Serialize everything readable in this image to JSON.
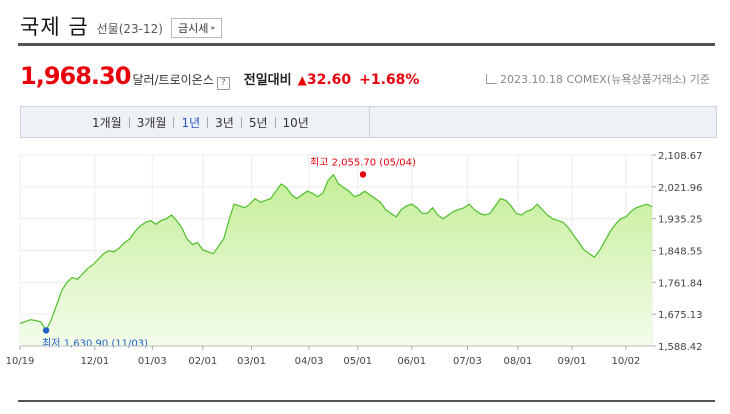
{
  "header": {
    "title": "국제 금",
    "subtitle": "선물(23-12)",
    "price_button": "금시세"
  },
  "quote": {
    "price": "1,968.30",
    "unit": "달러/트로이온스",
    "help": "?",
    "prev_label": "전일대비",
    "change_symbol": "▲",
    "change": "32.60",
    "percent": "+1.68%",
    "date_source": "2023.10.18  COMEX(뉴욕상품거래소) 기준"
  },
  "tabs": [
    {
      "label": "1개월",
      "active": false
    },
    {
      "label": "3개월",
      "active": false
    },
    {
      "label": "1년",
      "active": true
    },
    {
      "label": "3년",
      "active": false
    },
    {
      "label": "5년",
      "active": false
    },
    {
      "label": "10년",
      "active": false
    }
  ],
  "colors": {
    "up": "#e8000b",
    "low": "#1f63c6",
    "line": "#4fbf2a",
    "fill_top": "#c4ee97",
    "fill_bottom": "#f4fceb",
    "active_tab": "#2457c5"
  },
  "chart_data": {
    "type": "area",
    "xlabel": "",
    "ylabel": "",
    "ylim": [
      1588.42,
      2108.67
    ],
    "yticks": [
      "2,108.67",
      "2,021.96",
      "1,935.25",
      "1,848.55",
      "1,761.84",
      "1,675.13",
      "1,588.42"
    ],
    "xticks": [
      {
        "label": "10/19",
        "day": 0
      },
      {
        "label": "12/01",
        "day": 43
      },
      {
        "label": "01/03",
        "day": 76
      },
      {
        "label": "02/01",
        "day": 105
      },
      {
        "label": "03/01",
        "day": 133
      },
      {
        "label": "04/03",
        "day": 166
      },
      {
        "label": "05/01",
        "day": 194
      },
      {
        "label": "06/01",
        "day": 225
      },
      {
        "label": "07/03",
        "day": 257
      },
      {
        "label": "08/01",
        "day": 286
      },
      {
        "label": "09/01",
        "day": 317
      },
      {
        "label": "10/02",
        "day": 348
      }
    ],
    "max": {
      "label": "최고 2,055.70 (05/04)",
      "day": 197,
      "value": 2055.7
    },
    "min": {
      "label": "최저 1,630.90 (11/03)",
      "day": 15,
      "value": 1630.9
    },
    "x": [
      0,
      3,
      6,
      9,
      12,
      15,
      18,
      21,
      24,
      27,
      30,
      33,
      36,
      39,
      42,
      45,
      48,
      51,
      54,
      57,
      60,
      63,
      66,
      69,
      72,
      75,
      78,
      81,
      84,
      87,
      90,
      93,
      96,
      99,
      102,
      105,
      108,
      111,
      114,
      117,
      120,
      123,
      126,
      129,
      132,
      135,
      138,
      141,
      144,
      147,
      150,
      153,
      156,
      159,
      162,
      165,
      168,
      171,
      174,
      177,
      180,
      183,
      186,
      189,
      192,
      195,
      198,
      201,
      204,
      207,
      210,
      213,
      216,
      219,
      222,
      225,
      228,
      231,
      234,
      237,
      240,
      243,
      246,
      249,
      252,
      255,
      258,
      261,
      264,
      267,
      270,
      273,
      276,
      279,
      282,
      285,
      288,
      291,
      294,
      297,
      300,
      303,
      306,
      309,
      312,
      315,
      318,
      321,
      324,
      327,
      330,
      333,
      336,
      339,
      342,
      345,
      348,
      351,
      354,
      357,
      360,
      363
    ],
    "values": [
      1650,
      1655,
      1660,
      1658,
      1654,
      1631,
      1660,
      1700,
      1740,
      1762,
      1775,
      1770,
      1785,
      1800,
      1810,
      1825,
      1840,
      1848,
      1845,
      1855,
      1870,
      1880,
      1900,
      1915,
      1925,
      1930,
      1920,
      1930,
      1935,
      1945,
      1930,
      1910,
      1880,
      1865,
      1870,
      1850,
      1845,
      1840,
      1860,
      1880,
      1930,
      1975,
      1970,
      1965,
      1975,
      1990,
      1980,
      1985,
      1990,
      2010,
      2030,
      2020,
      2000,
      1990,
      2000,
      2010,
      2005,
      1995,
      2005,
      2040,
      2055,
      2030,
      2020,
      2010,
      1995,
      2000,
      2010,
      2000,
      1990,
      1980,
      1960,
      1950,
      1940,
      1960,
      1970,
      1975,
      1965,
      1950,
      1950,
      1965,
      1945,
      1935,
      1945,
      1955,
      1960,
      1965,
      1975,
      1960,
      1950,
      1945,
      1950,
      1970,
      1990,
      1985,
      1970,
      1950,
      1945,
      1955,
      1960,
      1975,
      1960,
      1945,
      1935,
      1930,
      1925,
      1910,
      1890,
      1870,
      1850,
      1840,
      1830,
      1850,
      1875,
      1900,
      1920,
      1935,
      1940,
      1955,
      1965,
      1970,
      1975,
      1968
    ],
    "grid": true
  }
}
